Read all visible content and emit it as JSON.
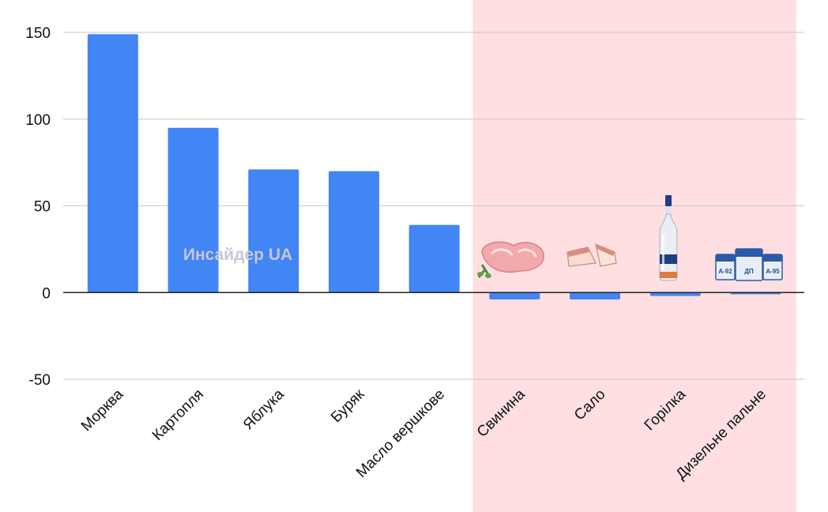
{
  "chart_data": {
    "type": "bar",
    "categories": [
      "Морква",
      "Картопля",
      "Яблука",
      "Буряк",
      "Масло вершкове",
      "Свинина",
      "Сало",
      "Горілка",
      "Дизельне пальне"
    ],
    "values": [
      149,
      95,
      71,
      70,
      39,
      -4,
      -4,
      -2,
      -1
    ],
    "ylim": [
      -50,
      160
    ],
    "yticks": [
      150,
      100,
      50,
      0,
      -50
    ],
    "grid": true,
    "bar_color": "#4285f4",
    "highlight_color": "#ffdfe2",
    "highlight_categories": [
      "Свинина",
      "Сало",
      "Горілка",
      "Дизельне пальне"
    ],
    "watermark": "Инсайдер UA",
    "fuel_badges": [
      "А-92",
      "ДП",
      "А-95"
    ],
    "icons": [
      "pork-meat-icon",
      "salo-icon",
      "vodka-bottle-icon",
      "fuel-barrels-icon"
    ]
  }
}
